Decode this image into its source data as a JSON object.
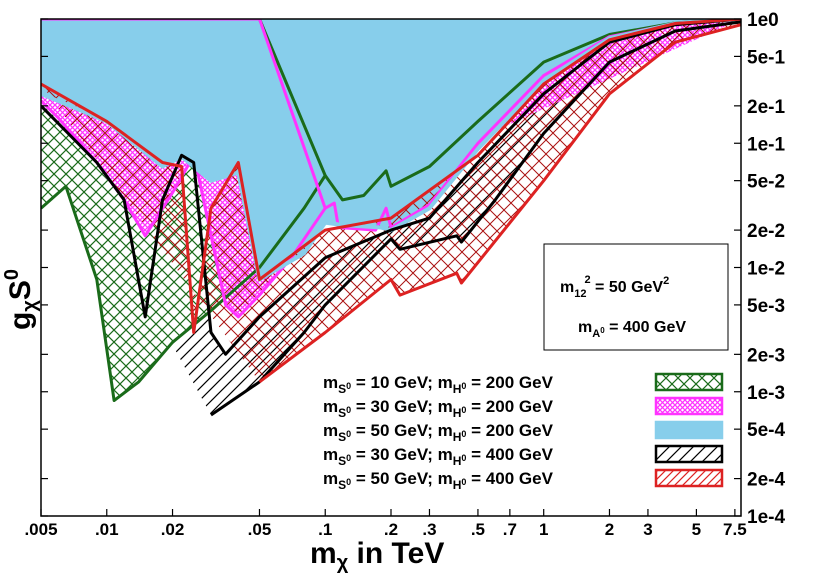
{
  "chart_data": {
    "type": "area",
    "title": "",
    "xlabel": {
      "main": "m",
      "sub": "χ",
      "tail": " in TeV"
    },
    "ylabel": {
      "g": "g",
      "sub": "χ",
      "s": "S",
      "sup": "0"
    },
    "x_scale": "log",
    "y_scale": "log",
    "xlim": [
      0.005,
      8
    ],
    "ylim": [
      0.0001,
      1
    ],
    "x_ticks": [
      {
        "v": 0.005,
        "label": ".005"
      },
      {
        "v": 0.01,
        "label": ".01"
      },
      {
        "v": 0.02,
        "label": ".02"
      },
      {
        "v": 0.05,
        "label": ".05"
      },
      {
        "v": 0.1,
        "label": ".1"
      },
      {
        "v": 0.2,
        "label": ".2"
      },
      {
        "v": 0.3,
        "label": ".3"
      },
      {
        "v": 0.5,
        "label": ".5"
      },
      {
        "v": 0.7,
        "label": ".7"
      },
      {
        "v": 1,
        "label": "1"
      },
      {
        "v": 2,
        "label": "2"
      },
      {
        "v": 3,
        "label": "3"
      },
      {
        "v": 5,
        "label": "5"
      },
      {
        "v": 7.5,
        "label": "7.5"
      }
    ],
    "y_ticks": [
      {
        "v": 1,
        "label": "1e0"
      },
      {
        "v": 0.5,
        "label": "5e-1"
      },
      {
        "v": 0.2,
        "label": "2e-1"
      },
      {
        "v": 0.1,
        "label": "1e-1"
      },
      {
        "v": 0.05,
        "label": "5e-2"
      },
      {
        "v": 0.02,
        "label": "2e-2"
      },
      {
        "v": 0.01,
        "label": "1e-2"
      },
      {
        "v": 0.005,
        "label": "5e-3"
      },
      {
        "v": 0.002,
        "label": "2e-3"
      },
      {
        "v": 0.001,
        "label": "1e-3"
      },
      {
        "v": 0.0005,
        "label": "5e-4"
      },
      {
        "v": 0.0002,
        "label": "2e-4"
      },
      {
        "v": 0.0001,
        "label": "1e-4"
      }
    ],
    "info_box": {
      "line1": {
        "pre": "m",
        "sub": "12",
        "sup": "2",
        "post": " = 50 GeV",
        "post_sup": "2"
      },
      "line2": {
        "pre": "m",
        "sub": "A",
        "subsup": "0",
        "post": " = 400 GeV"
      }
    },
    "series": [
      {
        "name": "m_S0 = 10 GeV; m_H0 = 200 GeV",
        "legend": {
          "s_mass": "10 GeV",
          "h_mass": "200 GeV"
        },
        "color": "#1a6b1a",
        "pattern": "crosshatch",
        "upper_boundary": [
          [
            0.005,
            1
          ],
          [
            0.05,
            1
          ],
          [
            0.1,
            0.055
          ],
          [
            0.12,
            0.035
          ],
          [
            0.15,
            0.038
          ],
          [
            0.19,
            0.06
          ],
          [
            0.2,
            0.045
          ],
          [
            0.3,
            0.065
          ],
          [
            0.5,
            0.15
          ],
          [
            1,
            0.45
          ],
          [
            2,
            0.75
          ],
          [
            4,
            0.93
          ],
          [
            8,
            1
          ]
        ],
        "lower_boundary": [
          [
            0.005,
            0.03
          ],
          [
            0.0065,
            0.045
          ],
          [
            0.009,
            0.008
          ],
          [
            0.0108,
            0.00085
          ],
          [
            0.014,
            0.0012
          ],
          [
            0.02,
            0.0025
          ],
          [
            0.03,
            0.0045
          ],
          [
            0.05,
            0.01
          ],
          [
            0.08,
            0.03
          ],
          [
            0.1,
            0.055
          ]
        ]
      },
      {
        "name": "m_S0 = 30 GeV; m_H0 = 200 GeV",
        "legend": {
          "s_mass": "30 GeV",
          "h_mass": "200 GeV"
        },
        "color": "#ff33ff",
        "pattern": "dense-crosshatch",
        "upper_boundary": [
          [
            0.005,
            1
          ],
          [
            0.05,
            1
          ],
          [
            0.1,
            0.03
          ],
          [
            0.11,
            0.033
          ],
          [
            0.115,
            0.021
          ],
          [
            0.17,
            0.02
          ],
          [
            0.19,
            0.03
          ],
          [
            0.2,
            0.021
          ],
          [
            0.3,
            0.032
          ],
          [
            0.5,
            0.1
          ],
          [
            1,
            0.35
          ],
          [
            2,
            0.72
          ],
          [
            4,
            0.92
          ],
          [
            8,
            1
          ]
        ],
        "lower_boundary": [
          [
            0.005,
            0.22
          ],
          [
            0.006,
            0.16
          ],
          [
            0.009,
            0.07
          ],
          [
            0.012,
            0.035
          ],
          [
            0.015,
            0.018
          ],
          [
            0.02,
            0.04
          ],
          [
            0.024,
            0.07
          ],
          [
            0.026,
            0.06
          ],
          [
            0.035,
            0.005
          ],
          [
            0.04,
            0.004
          ],
          [
            0.05,
            0.006
          ],
          [
            0.07,
            0.012
          ],
          [
            0.1,
            0.03
          ]
        ]
      },
      {
        "name": "m_S0 = 50 GeV; m_H0 = 200 GeV",
        "legend": {
          "s_mass": "50 GeV",
          "h_mass": "200 GeV"
        },
        "color": "#87ceeb",
        "pattern": "solid",
        "upper_boundary": [
          [
            0.005,
            1
          ],
          [
            8,
            1
          ]
        ],
        "lower_boundary": [
          [
            0.005,
            0.25
          ],
          [
            0.01,
            0.15
          ],
          [
            0.018,
            0.065
          ],
          [
            0.022,
            0.078
          ],
          [
            0.03,
            0.05
          ],
          [
            0.04,
            0.058
          ],
          [
            0.05,
            0.008
          ],
          [
            0.08,
            0.013
          ],
          [
            0.1,
            0.023
          ],
          [
            0.12,
            0.022
          ],
          [
            0.18,
            0.021
          ],
          [
            0.2,
            0.02
          ],
          [
            0.3,
            0.03
          ],
          [
            0.5,
            0.09
          ],
          [
            1,
            0.32
          ],
          [
            2,
            0.7
          ],
          [
            4,
            0.92
          ],
          [
            8,
            1
          ]
        ]
      },
      {
        "name": "m_S0 = 30 GeV; m_H0 = 400 GeV",
        "legend": {
          "s_mass": "30 GeV",
          "h_mass": "400 GeV"
        },
        "color": "#000000",
        "pattern": "hatch",
        "upper_boundary": [
          [
            0.005,
            0.2
          ],
          [
            0.009,
            0.07
          ],
          [
            0.012,
            0.035
          ],
          [
            0.015,
            0.004
          ],
          [
            0.018,
            0.035
          ],
          [
            0.022,
            0.08
          ],
          [
            0.025,
            0.07
          ],
          [
            0.03,
            0.003
          ],
          [
            0.035,
            0.002
          ],
          [
            0.05,
            0.004
          ],
          [
            0.1,
            0.012
          ],
          [
            0.2,
            0.02
          ],
          [
            0.3,
            0.025
          ],
          [
            0.5,
            0.07
          ],
          [
            1,
            0.25
          ],
          [
            2,
            0.65
          ],
          [
            4,
            0.9
          ],
          [
            8,
            1
          ]
        ],
        "lower_boundary": [
          [
            0.03,
            0.00065
          ],
          [
            0.05,
            0.0012
          ],
          [
            0.08,
            0.003
          ],
          [
            0.1,
            0.005
          ],
          [
            0.2,
            0.017
          ],
          [
            0.22,
            0.014
          ],
          [
            0.4,
            0.018
          ],
          [
            0.42,
            0.016
          ],
          [
            0.6,
            0.035
          ],
          [
            1,
            0.12
          ],
          [
            2,
            0.45
          ],
          [
            4,
            0.8
          ],
          [
            8,
            0.95
          ]
        ]
      },
      {
        "name": "m_S0 = 50 GeV; m_H0 = 400 GeV",
        "legend": {
          "s_mass": "50 GeV",
          "h_mass": "400 GeV"
        },
        "color": "#dd2222",
        "pattern": "hatch",
        "upper_boundary": [
          [
            0.005,
            0.3
          ],
          [
            0.01,
            0.15
          ],
          [
            0.018,
            0.07
          ],
          [
            0.022,
            0.065
          ],
          [
            0.025,
            0.003
          ],
          [
            0.03,
            0.03
          ],
          [
            0.04,
            0.07
          ],
          [
            0.05,
            0.008
          ],
          [
            0.1,
            0.02
          ],
          [
            0.2,
            0.025
          ],
          [
            0.5,
            0.08
          ],
          [
            1,
            0.3
          ],
          [
            2,
            0.68
          ],
          [
            4,
            0.92
          ],
          [
            8,
            1
          ]
        ],
        "lower_boundary": [
          [
            0.05,
            0.0012
          ],
          [
            0.1,
            0.003
          ],
          [
            0.2,
            0.008
          ],
          [
            0.22,
            0.006
          ],
          [
            0.4,
            0.009
          ],
          [
            0.42,
            0.0075
          ],
          [
            1,
            0.05
          ],
          [
            2,
            0.25
          ],
          [
            4,
            0.65
          ],
          [
            8,
            0.9
          ]
        ]
      }
    ],
    "legend_placement": "bottom-right",
    "grid": false
  }
}
